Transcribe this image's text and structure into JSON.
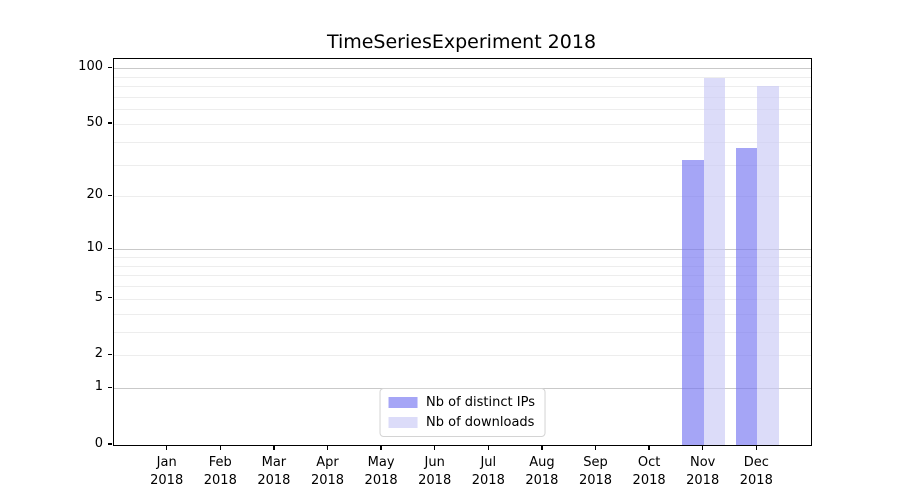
{
  "chart_data": {
    "type": "bar",
    "title": "TimeSeriesExperiment 2018",
    "categories": [
      "Jan",
      "Feb",
      "Mar",
      "Apr",
      "May",
      "Jun",
      "Jul",
      "Aug",
      "Sep",
      "Oct",
      "Nov",
      "Dec"
    ],
    "category_year": "2018",
    "series": [
      {
        "name": "Nb of distinct IPs",
        "color": "#7474f1",
        "values": [
          0,
          0,
          0,
          0,
          0,
          0,
          0,
          0,
          0,
          0,
          32,
          37
        ]
      },
      {
        "name": "Nb of downloads",
        "color": "#c9c9f6",
        "values": [
          0,
          0,
          0,
          0,
          0,
          0,
          0,
          0,
          0,
          0,
          88,
          80
        ]
      }
    ],
    "xlabel": "",
    "ylabel": "",
    "yaxis": {
      "scale": "log1p",
      "min": 0,
      "max": 112,
      "ticks": [
        0,
        1,
        2,
        5,
        10,
        20,
        50,
        100
      ],
      "major_gridlines": [
        1,
        10,
        100
      ],
      "minor_gridlines": [
        2,
        3,
        4,
        5,
        6,
        7,
        8,
        9,
        20,
        30,
        40,
        50,
        60,
        70,
        80,
        90
      ]
    },
    "legend": {
      "position": "lower center"
    },
    "style": {
      "bar_opacity": 0.65,
      "grid_minor_color": "#ededed",
      "grid_major_color": "#c9c9c9",
      "spine_color": "#000000",
      "text_color": "#000000",
      "legend_border_color": "#d4d4d4"
    }
  }
}
